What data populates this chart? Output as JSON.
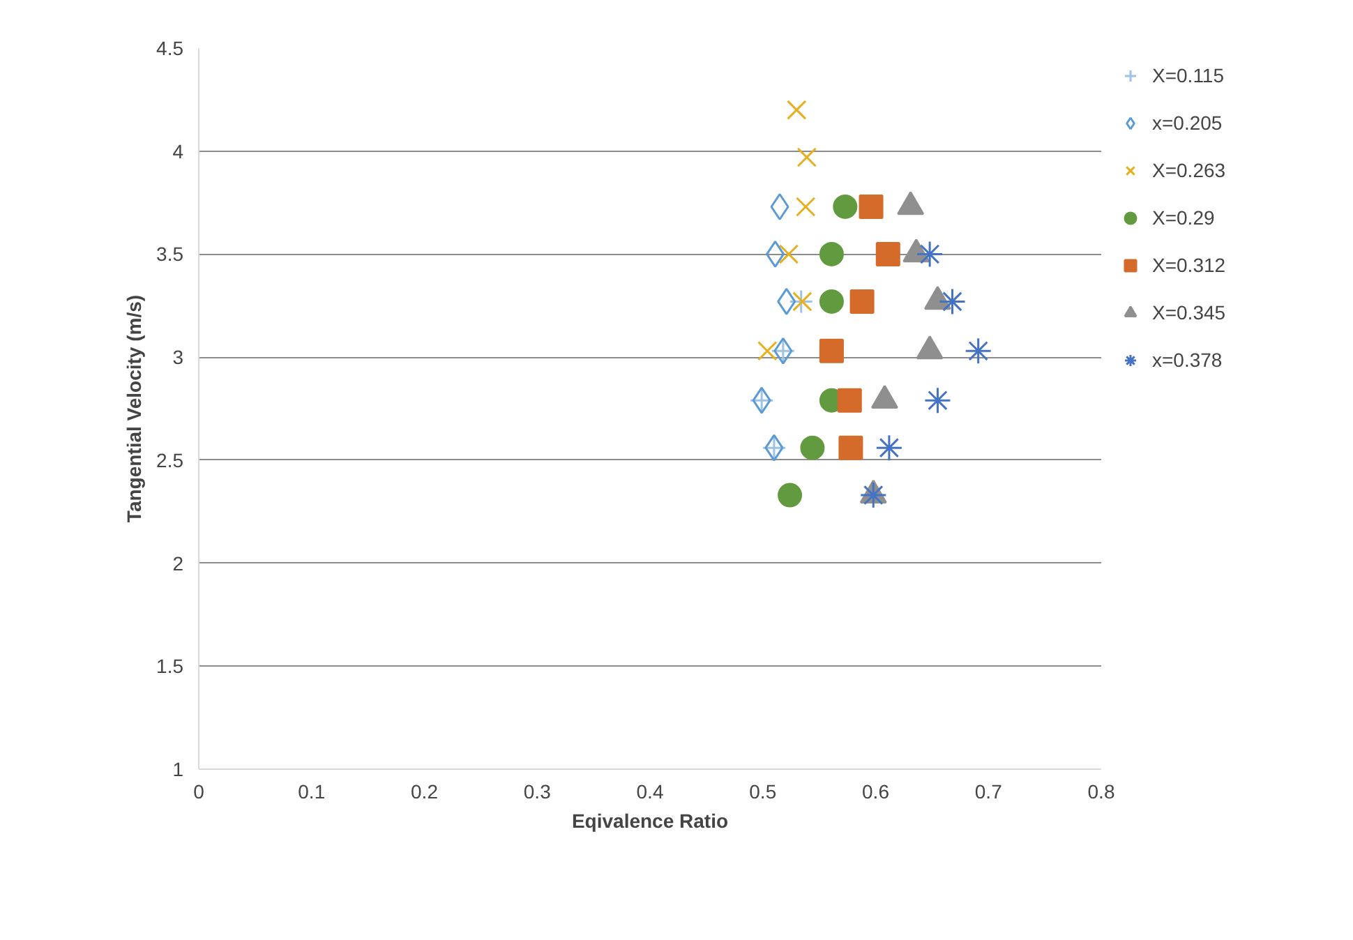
{
  "chart_data": {
    "type": "scatter",
    "xlabel": "Eqivalence Ratio",
    "ylabel": "Tangential Velocity (m/s)",
    "xlim": [
      0,
      0.8
    ],
    "xticks": [
      0,
      0.1,
      0.2,
      0.3,
      0.4,
      0.5,
      0.6,
      0.7,
      0.8
    ],
    "ylim": [
      1,
      4.5
    ],
    "yticks": [
      1,
      1.5,
      2,
      2.5,
      3,
      3.5,
      4,
      4.5
    ],
    "grid": "y",
    "legend": "right",
    "series": [
      {
        "name": "X=0.115",
        "color": "#9dc3e6",
        "marker": "cross",
        "x": [
          0.534,
          0.518,
          0.499,
          0.51
        ],
        "values": [
          3.27,
          3.03,
          2.79,
          2.56
        ]
      },
      {
        "name": "x=0.205",
        "color": "#5b9bd5",
        "marker": "diamond",
        "x": [
          0.515,
          0.511,
          0.521,
          0.518,
          0.499,
          0.51
        ],
        "values": [
          3.73,
          3.5,
          3.27,
          3.03,
          2.79,
          2.56
        ]
      },
      {
        "name": "X=0.263",
        "color": "#e6b020",
        "marker": "x",
        "x": [
          0.53,
          0.539,
          0.538,
          0.523,
          0.535,
          0.504
        ],
        "values": [
          4.2,
          3.97,
          3.73,
          3.5,
          3.27,
          3.03
        ]
      },
      {
        "name": "X=0.29",
        "color": "#629b3f",
        "marker": "circle",
        "x": [
          0.573,
          0.561,
          0.561,
          0.561,
          0.544,
          0.524
        ],
        "values": [
          3.73,
          3.5,
          3.27,
          2.79,
          2.56,
          2.33
        ]
      },
      {
        "name": "X=0.312",
        "color": "#d46b2a",
        "marker": "square",
        "x": [
          0.596,
          0.611,
          0.588,
          0.561,
          0.577,
          0.578
        ],
        "values": [
          3.73,
          3.5,
          3.27,
          3.03,
          2.79,
          2.56
        ]
      },
      {
        "name": "X=0.345",
        "color": "#8f8f8f",
        "marker": "triangle",
        "x": [
          0.631,
          0.636,
          0.655,
          0.648,
          0.608,
          0.598
        ],
        "values": [
          3.73,
          3.5,
          3.27,
          3.03,
          2.79,
          2.33
        ]
      },
      {
        "name": "x=0.378",
        "color": "#4472c4",
        "x": [
          0.648,
          0.668,
          0.691,
          0.655,
          0.612,
          0.598
        ],
        "values": [
          3.5,
          3.27,
          3.03,
          2.79,
          2.56,
          2.33
        ]
      }
    ]
  }
}
